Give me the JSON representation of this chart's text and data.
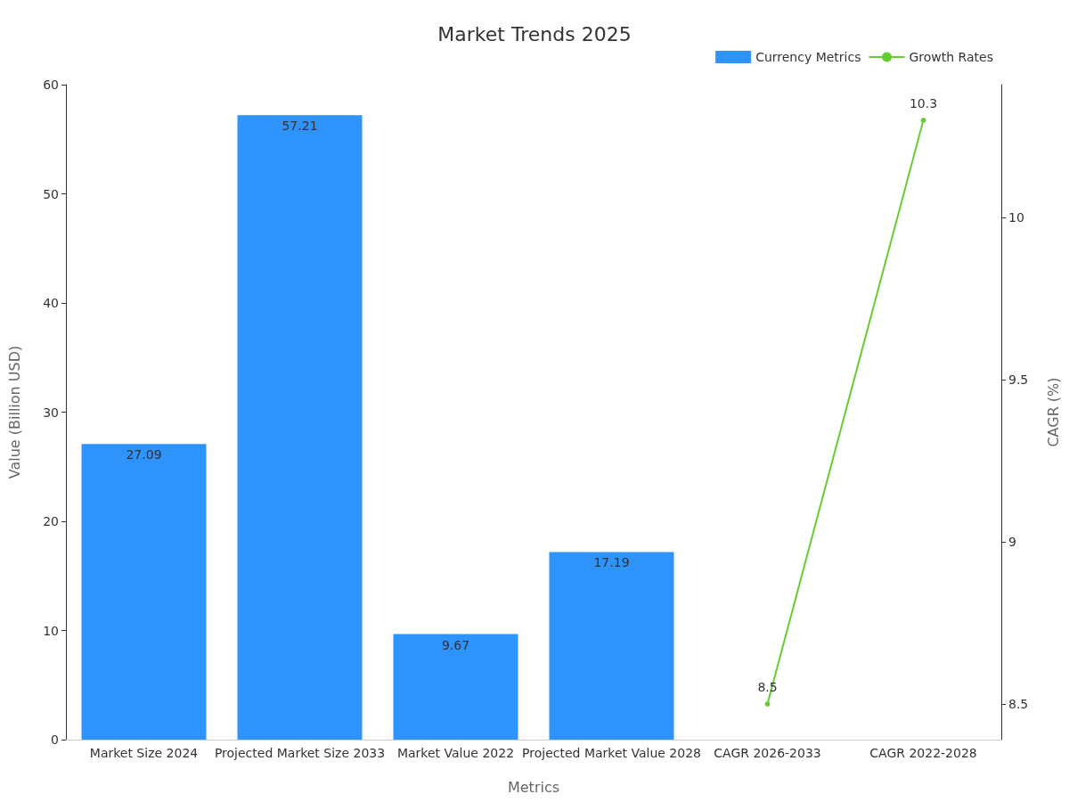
{
  "chart_data": {
    "type": "bar",
    "title": "Market Trends 2025",
    "xlabel": "Metrics",
    "ylabel": "Value (Billion USD)",
    "y2label": "CAGR (%)",
    "categories": [
      "Market Size 2024",
      "Projected Market Size 2033",
      "Market Value 2022",
      "Projected Market Value 2028",
      "CAGR 2026-2033",
      "CAGR 2022-2028"
    ],
    "series": [
      {
        "name": "Currency Metrics",
        "color": "#2e93fa",
        "values": [
          27.09,
          57.21,
          9.67,
          17.19,
          null,
          null
        ]
      },
      {
        "name": "Growth Rates",
        "type": "line",
        "axis": "y2",
        "color": "#66cc33",
        "marker": "circle",
        "values": [
          null,
          null,
          null,
          null,
          8.5,
          10.3
        ]
      }
    ],
    "ylim": [
      0,
      60
    ],
    "yticks": [
      0,
      10,
      20,
      30,
      40,
      50,
      60
    ],
    "y2lim": [
      8.39,
      10.41
    ],
    "y2ticks": [
      8.5,
      9,
      9.5,
      10
    ],
    "data_labels": true,
    "grid": false,
    "legend": "top right"
  }
}
